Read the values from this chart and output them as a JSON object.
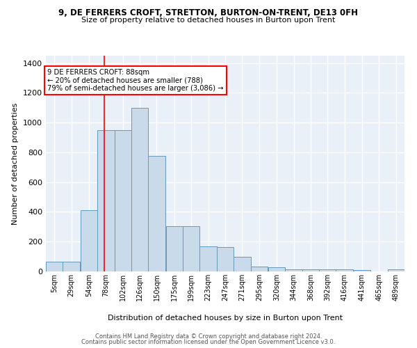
{
  "title1": "9, DE FERRERS CROFT, STRETTON, BURTON-ON-TRENT, DE13 0FH",
  "title2": "Size of property relative to detached houses in Burton upon Trent",
  "xlabel": "Distribution of detached houses by size in Burton upon Trent",
  "ylabel": "Number of detached properties",
  "footer1": "Contains HM Land Registry data © Crown copyright and database right 2024.",
  "footer2": "Contains public sector information licensed under the Open Government Licence v3.0.",
  "annotation_title": "9 DE FERRERS CROFT: 88sqm",
  "annotation_line1": "← 20% of detached houses are smaller (788)",
  "annotation_line2": "79% of semi-detached houses are larger (3,086) →",
  "bar_color": "#c9daea",
  "bar_edge_color": "#6699bb",
  "bg_color": "#eaf0f8",
  "grid_color": "#ffffff",
  "red_line_x": 88,
  "categories": [
    "5sqm",
    "29sqm",
    "54sqm",
    "78sqm",
    "102sqm",
    "126sqm",
    "150sqm",
    "175sqm",
    "199sqm",
    "223sqm",
    "247sqm",
    "271sqm",
    "295sqm",
    "320sqm",
    "344sqm",
    "368sqm",
    "392sqm",
    "416sqm",
    "441sqm",
    "465sqm",
    "489sqm"
  ],
  "bin_left": [
    5,
    29,
    54,
    78,
    102,
    126,
    150,
    175,
    199,
    223,
    247,
    271,
    295,
    320,
    344,
    368,
    392,
    416,
    441,
    465,
    489
  ],
  "bin_width": 24,
  "values": [
    65,
    65,
    410,
    950,
    950,
    1100,
    775,
    305,
    305,
    170,
    165,
    100,
    35,
    30,
    15,
    15,
    15,
    15,
    10,
    0,
    15
  ],
  "ylim": [
    0,
    1450
  ],
  "yticks": [
    0,
    200,
    400,
    600,
    800,
    1000,
    1200,
    1400
  ]
}
